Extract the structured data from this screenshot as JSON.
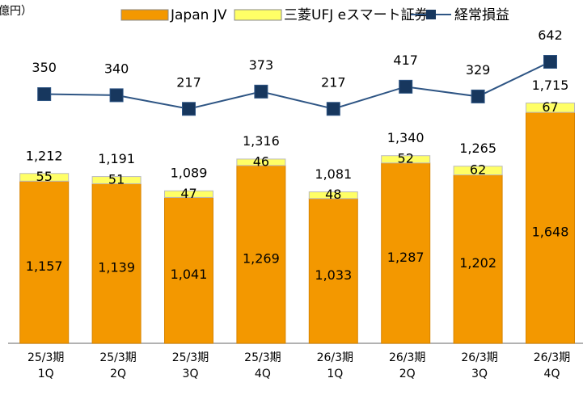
{
  "chart_data": {
    "type": "bar",
    "unit_label": "億円）",
    "categories": [
      [
        "25/3期",
        "1Q"
      ],
      [
        "25/3期",
        "2Q"
      ],
      [
        "25/3期",
        "3Q"
      ],
      [
        "25/3期",
        "4Q"
      ],
      [
        "26/3期",
        "1Q"
      ],
      [
        "26/3期",
        "2Q"
      ],
      [
        "26/3期",
        "3Q"
      ],
      [
        "26/3期",
        "4Q"
      ]
    ],
    "series": [
      {
        "name": "Japan JV",
        "color": "#f39800",
        "values": [
          1157,
          1139,
          1041,
          1269,
          1033,
          1287,
          1202,
          1648
        ],
        "value_labels": [
          "1,157",
          "1,139",
          "1,041",
          "1,269",
          "1,033",
          "1,287",
          "1,202",
          "1,648"
        ]
      },
      {
        "name": "三菱UFJ eスマート証券",
        "color": "#ffff66",
        "values": [
          55,
          51,
          47,
          46,
          48,
          52,
          62,
          67
        ]
      },
      {
        "name": "経常損益",
        "color": "#17375e",
        "type": "line",
        "axis": "y2",
        "values": [
          350,
          340,
          217,
          373,
          217,
          417,
          329,
          642
        ]
      }
    ],
    "totals": [
      1212,
      1191,
      1089,
      1316,
      1081,
      1340,
      1265,
      1715
    ],
    "total_labels": [
      "1,212",
      "1,191",
      "1,089",
      "1,316",
      "1,081",
      "1,340",
      "1,265",
      "1,715"
    ],
    "ylim": [
      0,
      2450
    ],
    "y2lim": [
      -1900,
      1200
    ]
  }
}
